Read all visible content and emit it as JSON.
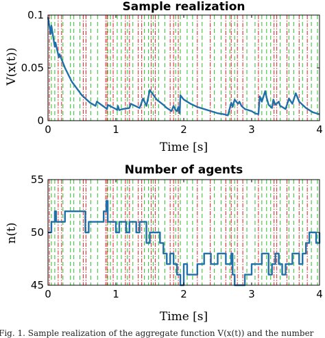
{
  "chart_data": [
    {
      "type": "line",
      "title": "Sample realization",
      "xlabel": "Time [s]",
      "ylabel": "V(x(t))",
      "xlim": [
        0,
        4
      ],
      "ylim": [
        0,
        0.1
      ],
      "xticks": [
        "0",
        "1",
        "2",
        "3",
        "4"
      ],
      "yticks": [
        "0",
        "0.05",
        "0.1"
      ],
      "series_color": "#1f6fa8",
      "x": [
        0,
        0.04,
        0.05,
        0.1,
        0.11,
        0.16,
        0.17,
        0.25,
        0.35,
        0.5,
        0.62,
        0.7,
        0.72,
        0.85,
        0.87,
        0.88,
        1.0,
        1.02,
        1.03,
        1.05,
        1.1,
        1.2,
        1.22,
        1.35,
        1.4,
        1.45,
        1.5,
        1.6,
        1.7,
        1.75,
        1.8,
        1.82,
        1.85,
        1.88,
        1.9,
        1.92,
        1.94,
        1.95,
        2.0,
        2.1,
        2.2,
        2.3,
        2.4,
        2.5,
        2.6,
        2.65,
        2.7,
        2.72,
        2.75,
        2.8,
        2.82,
        2.85,
        2.9,
        3.0,
        3.05,
        3.1,
        3.12,
        3.15,
        3.2,
        3.22,
        3.25,
        3.3,
        3.32,
        3.35,
        3.4,
        3.42,
        3.45,
        3.5,
        3.55,
        3.6,
        3.65,
        3.7,
        3.8,
        3.9,
        4.0
      ],
      "y": [
        0.098,
        0.082,
        0.09,
        0.07,
        0.074,
        0.06,
        0.063,
        0.05,
        0.037,
        0.024,
        0.017,
        0.014,
        0.018,
        0.012,
        0.011,
        0.015,
        0.011,
        0.01,
        0.014,
        0.01,
        0.011,
        0.012,
        0.016,
        0.012,
        0.021,
        0.014,
        0.029,
        0.02,
        0.015,
        0.012,
        0.01,
        0.009,
        0.014,
        0.01,
        0.009,
        0.013,
        0.007,
        0.024,
        0.02,
        0.016,
        0.013,
        0.011,
        0.009,
        0.007,
        0.006,
        0.005,
        0.017,
        0.013,
        0.02,
        0.016,
        0.018,
        0.014,
        0.011,
        0.009,
        0.007,
        0.006,
        0.023,
        0.018,
        0.028,
        0.022,
        0.015,
        0.012,
        0.02,
        0.015,
        0.018,
        0.014,
        0.013,
        0.011,
        0.021,
        0.016,
        0.026,
        0.018,
        0.012,
        0.008,
        0.006
      ]
    },
    {
      "type": "line",
      "title": "Number of agents",
      "xlabel": "Time [s]",
      "ylabel": "n(t)",
      "xlim": [
        0,
        4
      ],
      "ylim": [
        45,
        55
      ],
      "xticks": [
        "0",
        "1",
        "2",
        "3",
        "4"
      ],
      "yticks": [
        "45",
        "50",
        "55"
      ],
      "series_color": "#1f6fa8",
      "step": true,
      "x": [
        0,
        0.05,
        0.1,
        0.12,
        0.25,
        0.35,
        0.55,
        0.6,
        0.72,
        0.82,
        0.86,
        0.88,
        0.92,
        1.0,
        1.05,
        1.1,
        1.15,
        1.2,
        1.25,
        1.3,
        1.35,
        1.45,
        1.5,
        1.6,
        1.65,
        1.7,
        1.75,
        1.8,
        1.85,
        1.9,
        1.95,
        2.0,
        2.05,
        2.12,
        2.2,
        2.3,
        2.35,
        2.4,
        2.5,
        2.55,
        2.62,
        2.7,
        2.72,
        2.75,
        2.82,
        2.88,
        2.9,
        3.0,
        3.1,
        3.15,
        3.2,
        3.25,
        3.3,
        3.35,
        3.4,
        3.45,
        3.5,
        3.55,
        3.6,
        3.65,
        3.7,
        3.75,
        3.8,
        3.85,
        3.9,
        3.95,
        4.0
      ],
      "y": [
        50,
        51,
        52,
        51,
        52,
        52,
        50,
        51,
        51,
        52,
        53,
        51,
        51,
        50,
        51,
        51,
        50,
        51,
        51,
        50,
        51,
        49,
        50,
        50,
        49,
        48,
        47,
        48,
        47,
        46,
        45,
        47,
        46,
        46,
        47,
        48,
        48,
        47,
        48,
        48,
        47,
        48,
        46,
        45,
        45,
        45,
        46,
        47,
        47,
        48,
        48,
        46,
        47,
        48,
        47,
        46,
        47,
        47,
        48,
        48,
        47,
        48,
        49,
        50,
        50,
        49,
        50
      ]
    }
  ],
  "event_lines": {
    "arrival_color": "#3cc43c",
    "departure_color": "#e03030",
    "arrivals": [
      0.05,
      0.1,
      0.22,
      0.33,
      0.38,
      0.47,
      0.63,
      0.73,
      0.88,
      0.92,
      1.02,
      1.08,
      1.17,
      1.25,
      1.42,
      1.48,
      1.55,
      1.63,
      1.72,
      1.88,
      1.95,
      2.05,
      2.13,
      2.27,
      2.45,
      2.55,
      2.68,
      2.75,
      2.93,
      3.05,
      3.15,
      3.22,
      3.28,
      3.42,
      3.55,
      3.62,
      3.75,
      3.88,
      3.97
    ],
    "departures": [
      0.02,
      0.15,
      0.2,
      0.52,
      0.56,
      0.85,
      0.87,
      0.96,
      1.14,
      1.2,
      1.33,
      1.38,
      1.52,
      1.58,
      1.8,
      1.85,
      1.92,
      2.2,
      2.39,
      2.62,
      2.7,
      2.79,
      2.87,
      3.1,
      3.33,
      3.37,
      3.52,
      3.7,
      3.82
    ]
  },
  "caption": "Fig. 1.   Sample realization of the aggregate function V(x(t)) and the number"
}
